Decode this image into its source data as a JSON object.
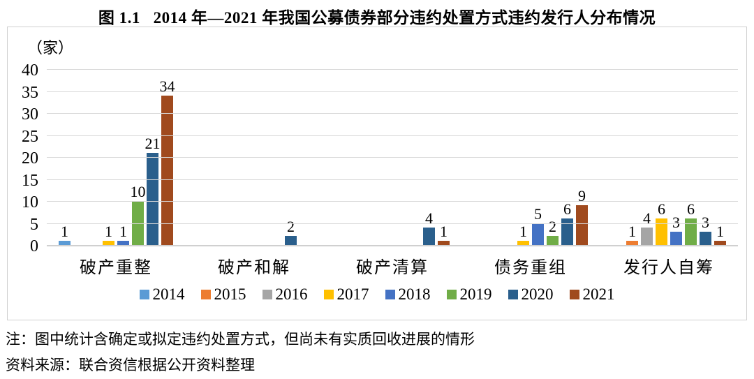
{
  "title": "图 1.1   2014 年—2021 年我国公募债券部分违约处置方式违约发行人分布情况",
  "unit_label": "（家）",
  "note": "注：图中统计含确定或拟定违约处置方式，但尚未有实质回收进展的情形",
  "source": "资料来源：联合资信根据公开资料整理",
  "chart_data": {
    "type": "bar",
    "title": "图 1.1 2014 年—2021 年我国公募债券部分违约处置方式违约发行人分布情况",
    "ylabel": "（家）",
    "ylim": [
      0,
      40
    ],
    "ytick_step": 5,
    "grid": true,
    "legend_position": "bottom",
    "data_labels": "nonzero values shown above bars",
    "categories": [
      "破产重整",
      "破产和解",
      "破产清算",
      "债务重组",
      "发行人自筹"
    ],
    "series": [
      {
        "name": "2014",
        "color": "#5B9BD5",
        "values": [
          1,
          0,
          0,
          0,
          0
        ]
      },
      {
        "name": "2015",
        "color": "#ED7D31",
        "values": [
          0,
          0,
          0,
          0,
          1
        ]
      },
      {
        "name": "2016",
        "color": "#A5A5A5",
        "values": [
          0,
          0,
          0,
          0,
          4
        ]
      },
      {
        "name": "2017",
        "color": "#FFC000",
        "values": [
          1,
          0,
          0,
          1,
          6
        ]
      },
      {
        "name": "2018",
        "color": "#4472C4",
        "values": [
          1,
          0,
          0,
          5,
          3
        ]
      },
      {
        "name": "2019",
        "color": "#70AD47",
        "values": [
          10,
          0,
          0,
          2,
          6
        ]
      },
      {
        "name": "2020",
        "color": "#2A5F8C",
        "values": [
          21,
          2,
          4,
          6,
          3
        ]
      },
      {
        "name": "2021",
        "color": "#A04A1E",
        "values": [
          34,
          0,
          1,
          9,
          1
        ]
      }
    ]
  }
}
